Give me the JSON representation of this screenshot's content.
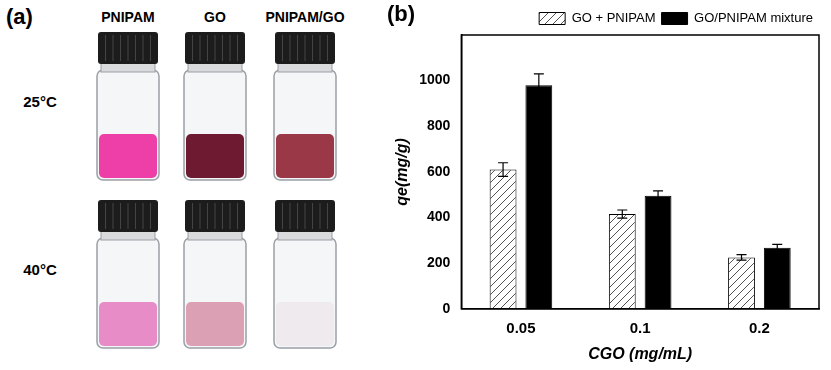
{
  "panel_a": {
    "label": "(a)",
    "columns": [
      "PNIPAM",
      "GO",
      "PNIPAM/GO"
    ],
    "rows": [
      {
        "label": "25°C",
        "vials": [
          {
            "color": "#ee3fa8"
          },
          {
            "color": "#6e1a30"
          },
          {
            "color": "#9a3848"
          }
        ]
      },
      {
        "label": "40°C",
        "vials": [
          {
            "color": "#e88cc8"
          },
          {
            "color": "#dca0b4"
          },
          {
            "color": "#eeeaee"
          }
        ]
      }
    ]
  },
  "chart_data": {
    "type": "bar",
    "title": "(b)",
    "x_label": "CGO (mg/mL)",
    "y_label": "qe(mg/g)",
    "categories": [
      "0.05",
      "0.1",
      "0.2"
    ],
    "series": [
      {
        "name": "GO + PNIPAM",
        "color": "#ffffff",
        "values": [
          610,
          415,
          225
        ],
        "errors": [
          30,
          18,
          12
        ]
      },
      {
        "name": "GO/PNIPAM mixture",
        "color": "#000000",
        "values": [
          980,
          495,
          268
        ],
        "errors": [
          50,
          22,
          14
        ]
      }
    ],
    "ylim": [
      0,
      1200
    ],
    "yticks": [
      0,
      200,
      400,
      600,
      800,
      1000
    ],
    "grid": false,
    "legend": "upper right"
  }
}
